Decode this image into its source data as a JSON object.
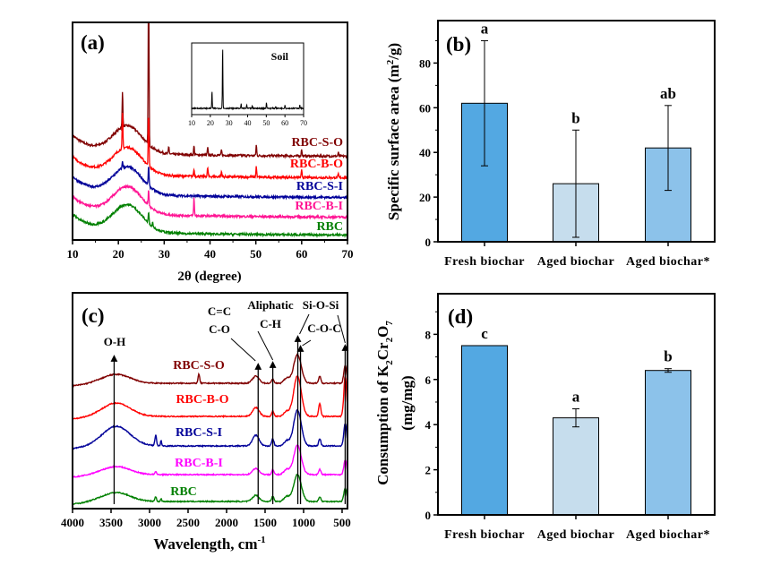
{
  "chart_data": [
    {
      "panel": "(a)",
      "type": "line",
      "xlabel": "2θ (degree)",
      "xlim": [
        10,
        70
      ],
      "xticks": [
        10,
        20,
        30,
        40,
        50,
        60,
        70
      ],
      "y_axis_labeled": false,
      "series": [
        {
          "name": "RBC-S-O",
          "color": "#800000",
          "offset": 88,
          "peaks": [
            [
              20.9,
              40
            ],
            [
              26.6,
              200
            ],
            [
              31,
              8
            ],
            [
              36.5,
              10
            ],
            [
              39.5,
              8
            ],
            [
              42.5,
              6
            ],
            [
              50.1,
              12
            ],
            [
              60,
              8
            ],
            [
              68,
              4
            ]
          ]
        },
        {
          "name": "RBC-B-O",
          "color": "#ff0000",
          "offset": 64,
          "peaks": [
            [
              20.9,
              40
            ],
            [
              26.6,
              60
            ],
            [
              36.5,
              8
            ],
            [
              39.5,
              10
            ],
            [
              42.5,
              6
            ],
            [
              50.1,
              12
            ],
            [
              60,
              8
            ],
            [
              68,
              4
            ]
          ]
        },
        {
          "name": "RBC-S-I",
          "color": "#000099",
          "offset": 42,
          "peaks": [
            [
              20.9,
              8
            ],
            [
              26.6,
              22
            ]
          ]
        },
        {
          "name": "RBC-B-I",
          "color": "#ff1493",
          "offset": 20,
          "peaks": [
            [
              26.6,
              18
            ],
            [
              36.5,
              20
            ]
          ]
        },
        {
          "name": "RBC",
          "color": "#008000",
          "offset": 0,
          "peaks": [
            [
              26.6,
              12
            ],
            [
              27.5,
              5
            ]
          ]
        }
      ],
      "inset": {
        "label": "Soil",
        "xlim": [
          10,
          70
        ],
        "xticks": [
          10,
          20,
          30,
          40,
          50,
          60,
          70
        ],
        "color": "#000000",
        "peaks": [
          [
            20.9,
            20
          ],
          [
            26.6,
            70
          ],
          [
            36.5,
            5
          ],
          [
            39.5,
            4
          ],
          [
            42.5,
            3
          ],
          [
            50.1,
            7
          ],
          [
            55,
            2
          ],
          [
            60,
            4
          ],
          [
            68,
            4
          ]
        ]
      }
    },
    {
      "panel": "(b)",
      "type": "bar",
      "categories": [
        "Fresh biochar",
        "Aged biochar",
        "Aged biochar*"
      ],
      "values": [
        62,
        26,
        42
      ],
      "errors": [
        28,
        24,
        19
      ],
      "letters": [
        "a",
        "b",
        "ab"
      ],
      "colors": [
        "#53a8e2",
        "#c6dded",
        "#8cc2ea"
      ],
      "ylabel_parts": [
        {
          "t": "Specific surface area (m",
          "s": ""
        },
        {
          "t": "2",
          "s": "sup"
        },
        {
          "t": "/g)",
          "s": ""
        }
      ],
      "ylim": [
        0,
        99
      ],
      "yticks": [
        0,
        20,
        40,
        60,
        80
      ]
    },
    {
      "panel": "(c)",
      "type": "line",
      "xlabel_parts": [
        {
          "t": "Wavelength, cm",
          "s": ""
        },
        {
          "t": "-1",
          "s": "sup"
        }
      ],
      "xlim": [
        4000,
        430
      ],
      "xticks": [
        4000,
        3500,
        3000,
        2500,
        2000,
        1500,
        1000,
        500
      ],
      "y_axis_labeled": false,
      "series": [
        {
          "name": "RBC-S-O",
          "color": "#800000",
          "offset": 140,
          "bands": [
            [
              3430,
              250,
              10
            ],
            [
              2360,
              15,
              10
            ],
            [
              1620,
              60,
              8
            ],
            [
              1400,
              20,
              5
            ],
            [
              1080,
              70,
              32
            ],
            [
              790,
              20,
              8
            ],
            [
              460,
              25,
              20
            ]
          ]
        },
        {
          "name": "RBC-B-O",
          "color": "#ff0000",
          "offset": 103,
          "bands": [
            [
              3430,
              250,
              15
            ],
            [
              1620,
              60,
              10
            ],
            [
              1400,
              20,
              6
            ],
            [
              1080,
              70,
              45
            ],
            [
              790,
              20,
              14
            ],
            [
              460,
              25,
              45
            ]
          ]
        },
        {
          "name": "RBC-S-I",
          "color": "#000099",
          "offset": 70,
          "bands": [
            [
              3430,
              250,
              22
            ],
            [
              2920,
              15,
              12
            ],
            [
              2850,
              10,
              6
            ],
            [
              1620,
              60,
              12
            ],
            [
              1400,
              20,
              8
            ],
            [
              1080,
              70,
              40
            ],
            [
              790,
              20,
              8
            ],
            [
              460,
              25,
              25
            ]
          ]
        },
        {
          "name": "RBC-B-I",
          "color": "#ff00ff",
          "offset": 38,
          "bands": [
            [
              3430,
              250,
              9
            ],
            [
              2920,
              15,
              3
            ],
            [
              1620,
              60,
              7
            ],
            [
              1400,
              20,
              6
            ],
            [
              1080,
              70,
              33
            ],
            [
              790,
              20,
              6
            ],
            [
              460,
              25,
              16
            ]
          ]
        },
        {
          "name": "RBC",
          "color": "#008000",
          "offset": 8,
          "bands": [
            [
              3430,
              250,
              10
            ],
            [
              2920,
              15,
              5
            ],
            [
              2850,
              10,
              3
            ],
            [
              1620,
              60,
              7
            ],
            [
              1400,
              20,
              6
            ],
            [
              1080,
              70,
              30
            ],
            [
              790,
              20,
              5
            ],
            [
              460,
              25,
              15
            ]
          ]
        }
      ],
      "annotations": [
        {
          "lines": [
            "O-H"
          ],
          "at": 3460
        },
        {
          "lines": [
            "C=C",
            "C-O"
          ],
          "at": 1590
        },
        {
          "lines": [
            "Aliphatic",
            "C-H"
          ],
          "at": 1400
        },
        {
          "lines": [
            "Si-O-Si"
          ],
          "at": 1075
        },
        {
          "lines": [
            "C-O-C"
          ],
          "at": 1040
        },
        {
          "lines": [],
          "at": 460
        }
      ]
    },
    {
      "panel": "(d)",
      "type": "bar",
      "categories": [
        "Fresh biochar",
        "Aged biochar",
        "Aged biochar*"
      ],
      "values": [
        7.5,
        4.3,
        6.4
      ],
      "errors": [
        0,
        0.4,
        0.08
      ],
      "letters": [
        "c",
        "a",
        "b"
      ],
      "colors": [
        "#53a8e2",
        "#c6dded",
        "#8cc2ea"
      ],
      "ylabel_parts": [
        {
          "t": "Consumption of  K",
          "s": ""
        },
        {
          "t": "2",
          "s": "sub"
        },
        {
          "t": "Cr",
          "s": ""
        },
        {
          "t": "2",
          "s": "sub"
        },
        {
          "t": "O",
          "s": ""
        },
        {
          "t": "7",
          "s": "sub"
        }
      ],
      "ylabel2": "(mg/mg)",
      "ylim": [
        0,
        9.8
      ],
      "yticks": [
        0,
        2,
        4,
        6,
        8
      ]
    }
  ]
}
